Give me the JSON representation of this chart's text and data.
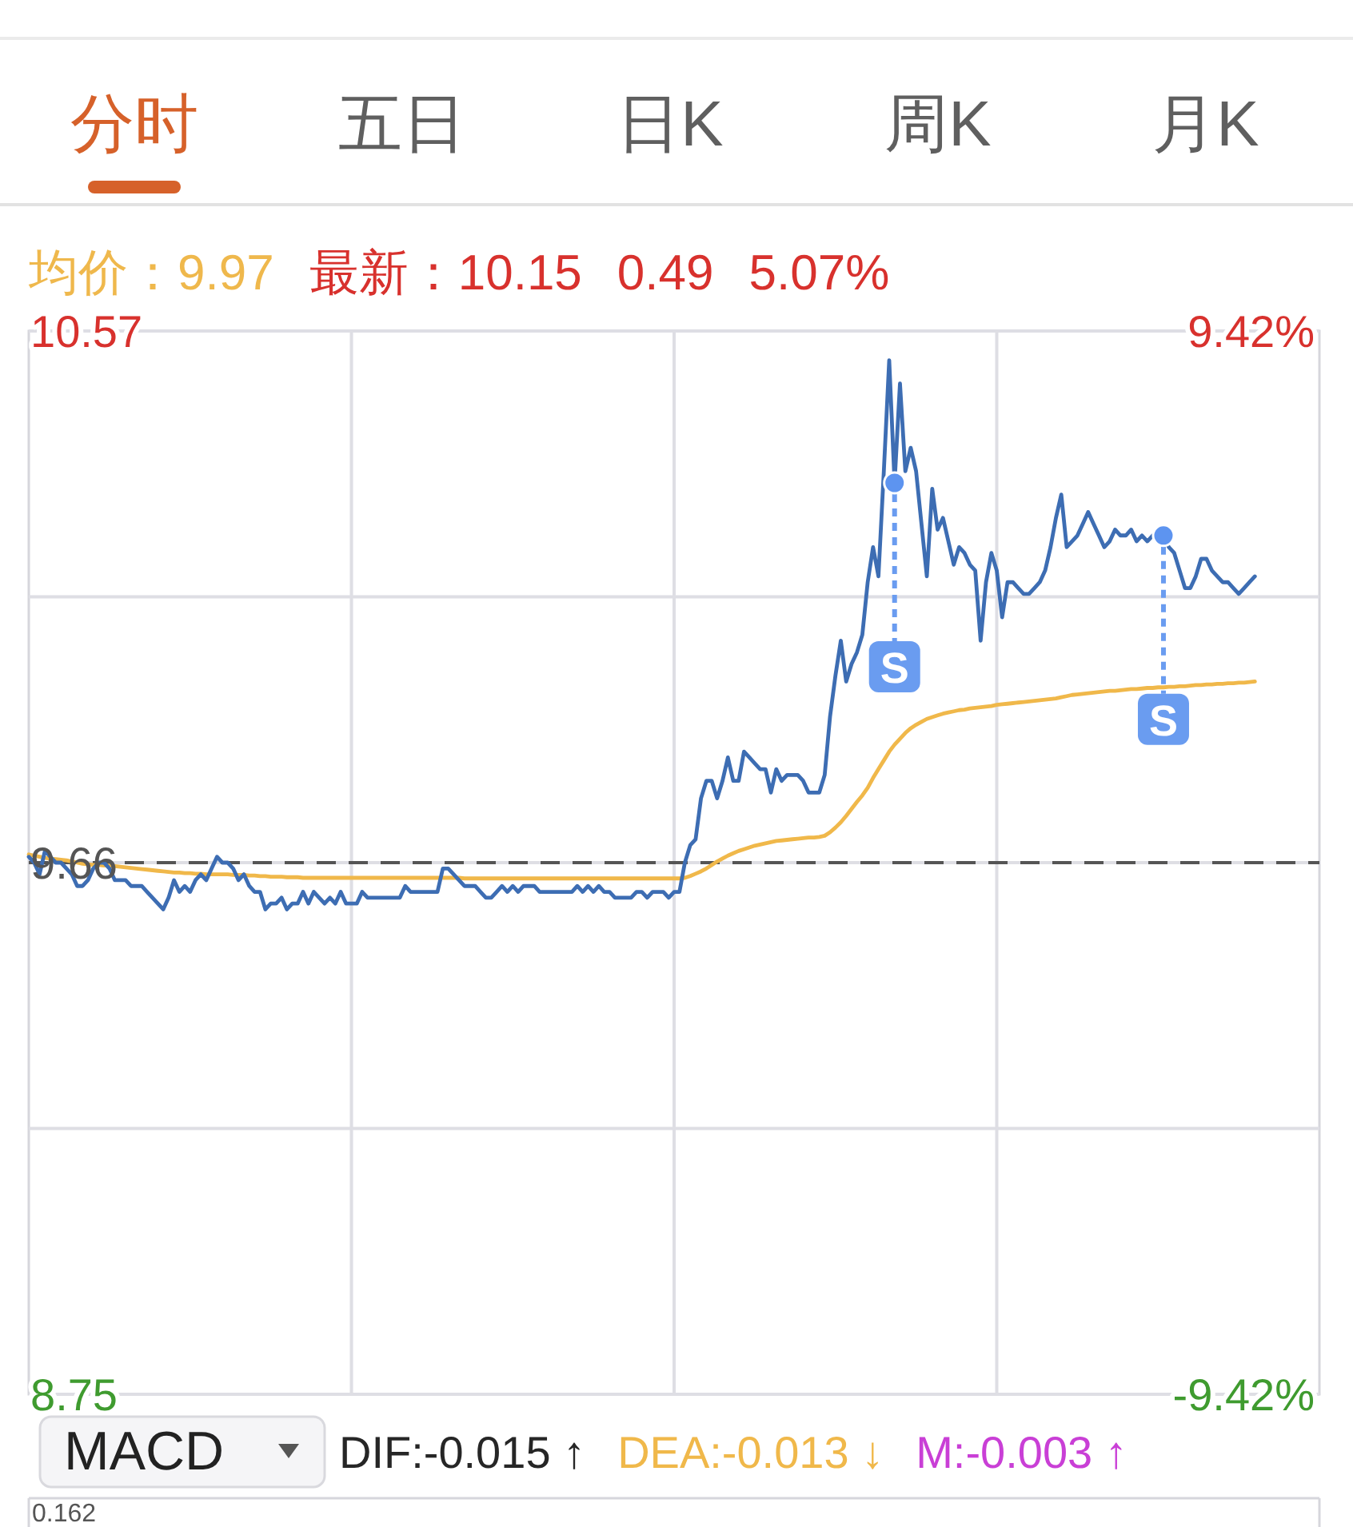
{
  "chart_data": {
    "type": "line",
    "title": "分时",
    "categories": [
      null,
      null,
      null,
      null,
      null,
      null,
      null,
      null,
      null,
      null,
      null,
      null,
      null,
      null,
      null,
      null,
      null,
      null,
      null,
      null,
      null,
      null,
      null,
      null,
      null,
      null,
      null,
      null,
      null,
      null,
      null,
      null,
      null,
      null,
      null,
      null,
      null,
      null,
      null,
      null,
      null,
      null,
      null,
      null,
      null,
      null,
      null,
      null,
      null,
      null,
      null,
      null,
      null,
      null,
      null,
      null,
      null,
      null,
      null,
      null,
      null,
      null,
      null,
      null,
      null,
      null,
      null,
      null,
      null,
      null,
      null,
      null,
      null,
      null,
      null,
      null,
      null,
      null,
      null,
      null,
      null,
      null,
      null,
      null,
      null,
      null,
      null,
      null,
      null,
      null,
      null,
      null,
      null,
      null,
      null,
      null,
      null,
      null,
      null,
      null,
      null,
      null,
      null,
      null,
      null,
      null,
      null,
      null,
      null,
      null,
      null,
      null,
      null,
      null,
      null,
      null,
      null,
      null,
      null,
      null,
      null,
      null,
      null,
      null,
      null,
      null,
      null,
      null,
      null,
      null,
      null,
      null,
      null,
      null,
      null,
      null,
      null,
      null,
      null,
      null,
      null,
      null,
      null,
      null,
      null,
      null,
      null,
      null,
      null,
      null,
      null,
      null,
      null,
      null,
      null,
      null,
      null,
      null,
      null,
      null,
      null,
      null,
      null,
      null,
      null,
      null,
      null,
      null,
      null,
      null,
      null,
      null,
      null,
      null,
      null,
      null,
      null,
      null,
      null,
      null,
      null,
      null,
      null,
      null,
      null,
      null,
      null,
      null,
      null,
      null,
      null,
      null,
      null,
      null,
      null,
      null,
      null,
      null,
      null,
      null,
      null,
      null,
      null,
      null,
      null,
      null,
      null,
      null,
      null,
      null,
      null,
      null,
      null,
      null,
      null,
      null,
      null,
      null,
      null,
      null,
      null,
      null,
      null,
      null,
      null,
      null,
      null,
      null,
      null,
      null,
      null,
      null,
      null,
      null,
      null,
      null,
      null,
      null,
      null,
      null,
      null
    ],
    "series": [
      {
        "color": "#f0b84a",
        "values": [
          9.674,
          9.672,
          9.67,
          9.668,
          9.667,
          9.666,
          9.665,
          9.664,
          9.662,
          9.66,
          9.658,
          9.657,
          9.656,
          9.656,
          9.655,
          9.655,
          9.654,
          9.653,
          9.652,
          9.651,
          9.65,
          9.649,
          9.648,
          9.647,
          9.646,
          9.645,
          9.644,
          9.643,
          9.643,
          9.642,
          9.642,
          9.641,
          9.641,
          9.64,
          9.64,
          9.64,
          9.64,
          9.64,
          9.639,
          9.639,
          9.639,
          9.638,
          9.638,
          9.637,
          9.637,
          9.636,
          9.636,
          9.636,
          9.635,
          9.635,
          9.635,
          9.634,
          9.634,
          9.634,
          9.634,
          9.634,
          9.634,
          9.634,
          9.634,
          9.634,
          9.634,
          9.634,
          9.634,
          9.634,
          9.634,
          9.634,
          9.634,
          9.634,
          9.634,
          9.634,
          9.634,
          9.634,
          9.634,
          9.634,
          9.634,
          9.634,
          9.634,
          9.634,
          9.634,
          9.634,
          9.634,
          9.633,
          9.633,
          9.633,
          9.633,
          9.633,
          9.633,
          9.633,
          9.633,
          9.633,
          9.633,
          9.633,
          9.633,
          9.633,
          9.633,
          9.633,
          9.633,
          9.633,
          9.633,
          9.633,
          9.633,
          9.633,
          9.633,
          9.633,
          9.633,
          9.633,
          9.633,
          9.633,
          9.633,
          9.633,
          9.633,
          9.633,
          9.633,
          9.633,
          9.633,
          9.633,
          9.633,
          9.633,
          9.633,
          9.633,
          9.633,
          9.633,
          9.634,
          9.637,
          9.641,
          9.645,
          9.65,
          9.656,
          9.662,
          9.667,
          9.672,
          9.676,
          9.68,
          9.683,
          9.686,
          9.689,
          9.691,
          9.693,
          9.695,
          9.697,
          9.698,
          9.699,
          9.7,
          9.701,
          9.702,
          9.703,
          9.703,
          9.704,
          9.706,
          9.712,
          9.72,
          9.729,
          9.74,
          9.752,
          9.764,
          9.775,
          9.788,
          9.805,
          9.82,
          9.835,
          9.85,
          9.862,
          9.872,
          9.882,
          9.89,
          9.896,
          9.901,
          9.906,
          9.909,
          9.912,
          9.915,
          9.917,
          9.919,
          9.921,
          9.922,
          9.924,
          9.925,
          9.926,
          9.927,
          9.928,
          9.93,
          9.931,
          9.932,
          9.933,
          9.934,
          9.935,
          9.936,
          9.937,
          9.938,
          9.939,
          9.94,
          9.941,
          9.943,
          9.945,
          9.947,
          9.948,
          9.949,
          9.95,
          9.951,
          9.952,
          9.953,
          9.954,
          9.954,
          9.955,
          9.956,
          9.957,
          9.957,
          9.958,
          9.959,
          9.959,
          9.96,
          9.96,
          9.961,
          9.961,
          9.962,
          9.962,
          9.963,
          9.964,
          9.964,
          9.965,
          9.965,
          9.966,
          9.966,
          9.967,
          9.967,
          9.968,
          9.968,
          9.969,
          9.97,
          null,
          null,
          null,
          null,
          null,
          null,
          null,
          null,
          null,
          null,
          null,
          null
        ]
      },
      {
        "color": "#3d6db3",
        "values": [
          9.67,
          9.66,
          9.64,
          9.68,
          9.67,
          9.66,
          9.66,
          9.65,
          9.64,
          9.62,
          9.62,
          9.63,
          9.65,
          9.66,
          9.66,
          9.65,
          9.63,
          9.63,
          9.63,
          9.62,
          9.62,
          9.62,
          9.61,
          9.6,
          9.59,
          9.58,
          9.6,
          9.63,
          9.61,
          9.62,
          9.61,
          9.63,
          9.64,
          9.63,
          9.65,
          9.67,
          9.66,
          9.66,
          9.65,
          9.63,
          9.64,
          9.62,
          9.61,
          9.61,
          9.58,
          9.59,
          9.59,
          9.6,
          9.58,
          9.59,
          9.59,
          9.61,
          9.59,
          9.61,
          9.6,
          9.59,
          9.6,
          9.59,
          9.61,
          9.59,
          9.59,
          9.59,
          9.61,
          9.6,
          9.6,
          9.6,
          9.6,
          9.6,
          9.6,
          9.6,
          9.62,
          9.61,
          9.61,
          9.61,
          9.61,
          9.61,
          9.61,
          9.65,
          9.65,
          9.64,
          9.63,
          9.62,
          9.62,
          9.62,
          9.61,
          9.6,
          9.6,
          9.61,
          9.62,
          9.61,
          9.62,
          9.61,
          9.62,
          9.62,
          9.62,
          9.61,
          9.61,
          9.61,
          9.61,
          9.61,
          9.61,
          9.61,
          9.62,
          9.61,
          9.62,
          9.61,
          9.62,
          9.61,
          9.61,
          9.6,
          9.6,
          9.6,
          9.6,
          9.61,
          9.61,
          9.6,
          9.61,
          9.61,
          9.61,
          9.6,
          9.61,
          9.61,
          9.66,
          9.69,
          9.7,
          9.77,
          9.8,
          9.8,
          9.77,
          9.8,
          9.84,
          9.8,
          9.8,
          9.85,
          9.84,
          9.83,
          9.82,
          9.82,
          9.78,
          9.82,
          9.8,
          9.81,
          9.81,
          9.81,
          9.8,
          9.78,
          9.78,
          9.78,
          9.81,
          9.91,
          9.98,
          10.04,
          9.97,
          10.0,
          10.02,
          10.05,
          10.14,
          10.2,
          10.15,
          10.33,
          10.52,
          10.31,
          10.48,
          10.33,
          10.37,
          10.33,
          10.24,
          10.15,
          10.3,
          10.23,
          10.25,
          10.21,
          10.17,
          10.2,
          10.19,
          10.17,
          10.16,
          10.04,
          10.14,
          10.19,
          10.16,
          10.08,
          10.14,
          10.14,
          10.13,
          10.12,
          10.12,
          10.13,
          10.14,
          10.16,
          10.2,
          10.25,
          10.29,
          10.2,
          10.21,
          10.22,
          10.24,
          10.26,
          10.24,
          10.22,
          10.2,
          10.21,
          10.23,
          10.22,
          10.22,
          10.23,
          10.21,
          10.22,
          10.21,
          10.22,
          10.22,
          10.22,
          10.2,
          10.19,
          10.16,
          10.13,
          10.13,
          10.15,
          10.18,
          10.18,
          10.16,
          10.15,
          10.14,
          10.14,
          10.13,
          10.12,
          10.13,
          10.14,
          10.15,
          null,
          null,
          null,
          null,
          null,
          null,
          null,
          null,
          null,
          null,
          null,
          null
        ]
      },
      {
        "type": "scatter",
        "marker": "circle",
        "color": "#5d94f0",
        "values": [
          null,
          null,
          null,
          null,
          null,
          null,
          null,
          null,
          null,
          null,
          null,
          null,
          null,
          null,
          null,
          null,
          null,
          null,
          null,
          null,
          null,
          null,
          null,
          null,
          null,
          null,
          null,
          null,
          null,
          null,
          null,
          null,
          null,
          null,
          null,
          null,
          null,
          null,
          null,
          null,
          null,
          null,
          null,
          null,
          null,
          null,
          null,
          null,
          null,
          null,
          null,
          null,
          null,
          null,
          null,
          null,
          null,
          null,
          null,
          null,
          null,
          null,
          null,
          null,
          null,
          null,
          null,
          null,
          null,
          null,
          null,
          null,
          null,
          null,
          null,
          null,
          null,
          null,
          null,
          null,
          null,
          null,
          null,
          null,
          null,
          null,
          null,
          null,
          null,
          null,
          null,
          null,
          null,
          null,
          null,
          null,
          null,
          null,
          null,
          null,
          null,
          null,
          null,
          null,
          null,
          null,
          null,
          null,
          null,
          null,
          null,
          null,
          null,
          null,
          null,
          null,
          null,
          null,
          null,
          null,
          null,
          null,
          null,
          null,
          null,
          null,
          null,
          null,
          null,
          null,
          null,
          null,
          null,
          null,
          null,
          null,
          null,
          null,
          null,
          null,
          null,
          null,
          null,
          null,
          null,
          null,
          null,
          null,
          null,
          null,
          null,
          null,
          null,
          null,
          null,
          null,
          null,
          null,
          null,
          null,
          null,
          10.31,
          null,
          null,
          null,
          null,
          null,
          null,
          null,
          null,
          null,
          null,
          null,
          null,
          null,
          null,
          null,
          null,
          null,
          null,
          null,
          null,
          null,
          null,
          null,
          null,
          null,
          null,
          null,
          null,
          null,
          null,
          null,
          null,
          null,
          null,
          null,
          null,
          null,
          null,
          null,
          null,
          null,
          null,
          null,
          null,
          null,
          null,
          null,
          null,
          null,
          10.22,
          null,
          null,
          null,
          null,
          null,
          null,
          null,
          null,
          null,
          null,
          null,
          null,
          null,
          null,
          null,
          null,
          null,
          null,
          null,
          null,
          null,
          null,
          null,
          null,
          null,
          null,
          null,
          null,
          null
        ]
      }
    ],
    "ylim": [
      8.75,
      10.57
    ],
    "yticks": [
      8.75,
      {
        "value": 9.205,
        "label": null
      },
      9.66,
      {
        "value": 10.115,
        "label": null
      },
      10.57
    ],
    "y2lim": [
      -9.42,
      9.42
    ],
    "y2ticks": [
      {
        "value": -9.42,
        "label": "-9.42%"
      },
      {
        "value": 9.42,
        "label": "9.42%"
      }
    ],
    "grid": true,
    "ref_lines": [
      {
        "axis": "y",
        "value": 9.66,
        "color": "#555555",
        "line_style": "dashed"
      }
    ],
    "annotations": [
      "五日",
      "日K",
      "周K",
      "月K",
      "均价：9.97",
      "最新：10.15",
      "0.49",
      "5.07%",
      "MACD",
      "DIF:-0.015 ↑",
      "DEA:-0.013 ↓",
      "M:-0.003 ↑",
      "0.162",
      {
        "text": "S",
        "y": 10.31
      },
      {
        "text": "S",
        "y": 10.22
      }
    ]
  }
}
